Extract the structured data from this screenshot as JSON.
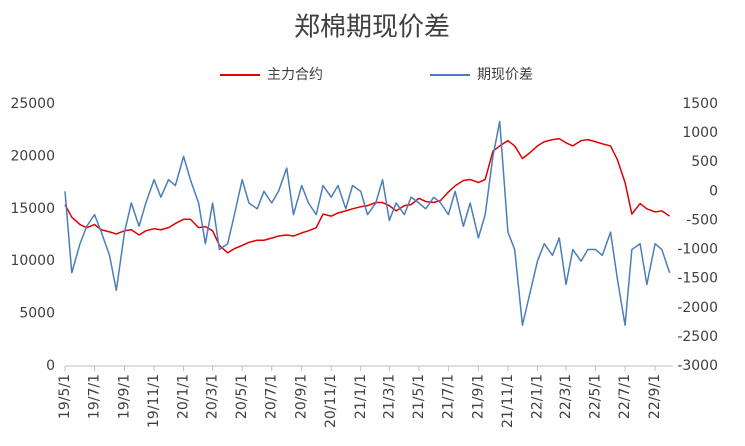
{
  "chart_data": {
    "type": "line",
    "title": "郑棉期现价差",
    "x": [
      "19/5/1",
      "19/5/15",
      "19/6/1",
      "19/6/15",
      "19/7/1",
      "19/7/15",
      "19/8/1",
      "19/8/15",
      "19/9/1",
      "19/9/15",
      "19/10/1",
      "19/10/15",
      "19/11/1",
      "19/11/15",
      "19/12/1",
      "19/12/15",
      "20/1/1",
      "20/1/15",
      "20/2/1",
      "20/2/15",
      "20/3/1",
      "20/3/15",
      "20/4/1",
      "20/4/15",
      "20/5/1",
      "20/5/15",
      "20/6/1",
      "20/6/15",
      "20/7/1",
      "20/7/15",
      "20/8/1",
      "20/8/15",
      "20/9/1",
      "20/9/15",
      "20/10/1",
      "20/10/15",
      "20/11/1",
      "20/11/15",
      "20/12/1",
      "20/12/15",
      "21/1/1",
      "21/1/15",
      "21/2/1",
      "21/2/15",
      "21/3/1",
      "21/3/15",
      "21/4/1",
      "21/4/15",
      "21/5/1",
      "21/5/15",
      "21/6/1",
      "21/6/15",
      "21/7/1",
      "21/7/15",
      "21/8/1",
      "21/8/15",
      "21/9/1",
      "21/9/15",
      "21/10/1",
      "21/10/15",
      "21/11/1",
      "21/11/15",
      "21/12/1",
      "21/12/15",
      "22/1/1",
      "22/1/15",
      "22/2/1",
      "22/2/15",
      "22/3/1",
      "22/3/15",
      "22/4/1",
      "22/4/15",
      "22/5/1",
      "22/5/15",
      "22/6/1",
      "22/6/15",
      "22/7/1",
      "22/7/15",
      "22/8/1",
      "22/8/15",
      "22/9/1",
      "22/9/15",
      "22/10/1"
    ],
    "xlim": [
      "19/5/1",
      "22/10/8"
    ],
    "xticks": [
      "19/5/1",
      "19/7/1",
      "19/9/1",
      "19/11/1",
      "20/1/1",
      "20/3/1",
      "20/5/1",
      "20/7/1",
      "20/9/1",
      "20/11/1",
      "21/1/1",
      "21/3/1",
      "21/5/1",
      "21/7/1",
      "21/9/1",
      "21/11/1",
      "22/1/1",
      "22/3/1",
      "22/5/1",
      "22/7/1",
      "22/9/1"
    ],
    "ylim": [
      0,
      25000
    ],
    "yticks": [
      0,
      5000,
      10000,
      15000,
      20000,
      25000
    ],
    "y2lim": [
      -3000,
      1500
    ],
    "y2ticks": [
      -3000,
      -2500,
      -2000,
      -1500,
      -1000,
      -500,
      0,
      500,
      1000,
      1500
    ],
    "series": [
      {
        "name": "主力合约",
        "color": "#e00000",
        "values": [
          15400,
          14200,
          13500,
          13200,
          13500,
          13000,
          12800,
          12600,
          12900,
          13000,
          12500,
          12900,
          13100,
          13000,
          13200,
          13600,
          14000,
          14000,
          13200,
          13300,
          12900,
          11500,
          10800,
          11200,
          11500,
          11800,
          12000,
          12000,
          12200,
          12400,
          12500,
          12400,
          12700,
          12900,
          13200,
          14500,
          14300,
          14600,
          14800,
          15000,
          15200,
          15300,
          15600,
          15600,
          15300,
          14800,
          15300,
          15400,
          16000,
          15700,
          15600,
          15800,
          16600,
          17200,
          17700,
          17800,
          17500,
          17800,
          20500,
          21000,
          21500,
          21000,
          19800,
          20300,
          21000,
          21400,
          21600,
          21700,
          21300,
          21000,
          21500,
          21600,
          21400,
          21200,
          21000,
          19700,
          17500,
          14500,
          15500,
          15000,
          14700,
          14800,
          14300
        ]
      },
      {
        "name": "期现价差",
        "color": "#4a7ebb",
        "axis": "y2",
        "values": [
          0,
          -1400,
          -900,
          -600,
          -400,
          -700,
          -1100,
          -1700,
          -700,
          -200,
          -600,
          -200,
          200,
          -100,
          200,
          100,
          600,
          200,
          -200,
          -900,
          -200,
          -1000,
          -900,
          -400,
          200,
          -200,
          -300,
          0,
          -200,
          0,
          400,
          -400,
          100,
          -200,
          -400,
          100,
          -100,
          100,
          -300,
          100,
          0,
          -400,
          -200,
          200,
          -500,
          -200,
          -400,
          -100,
          -200,
          -300,
          -100,
          -200,
          -400,
          0,
          -600,
          -200,
          -800,
          -400,
          600,
          1200,
          -700,
          -1000,
          -2300,
          -1800,
          -1200,
          -900,
          -1100,
          -800,
          -1600,
          -1000,
          -1200,
          -1000,
          -1000,
          -1100,
          -700,
          -1500,
          -2300,
          -1000,
          -900,
          -1600,
          -900,
          -1000,
          -1400
        ]
      }
    ]
  }
}
